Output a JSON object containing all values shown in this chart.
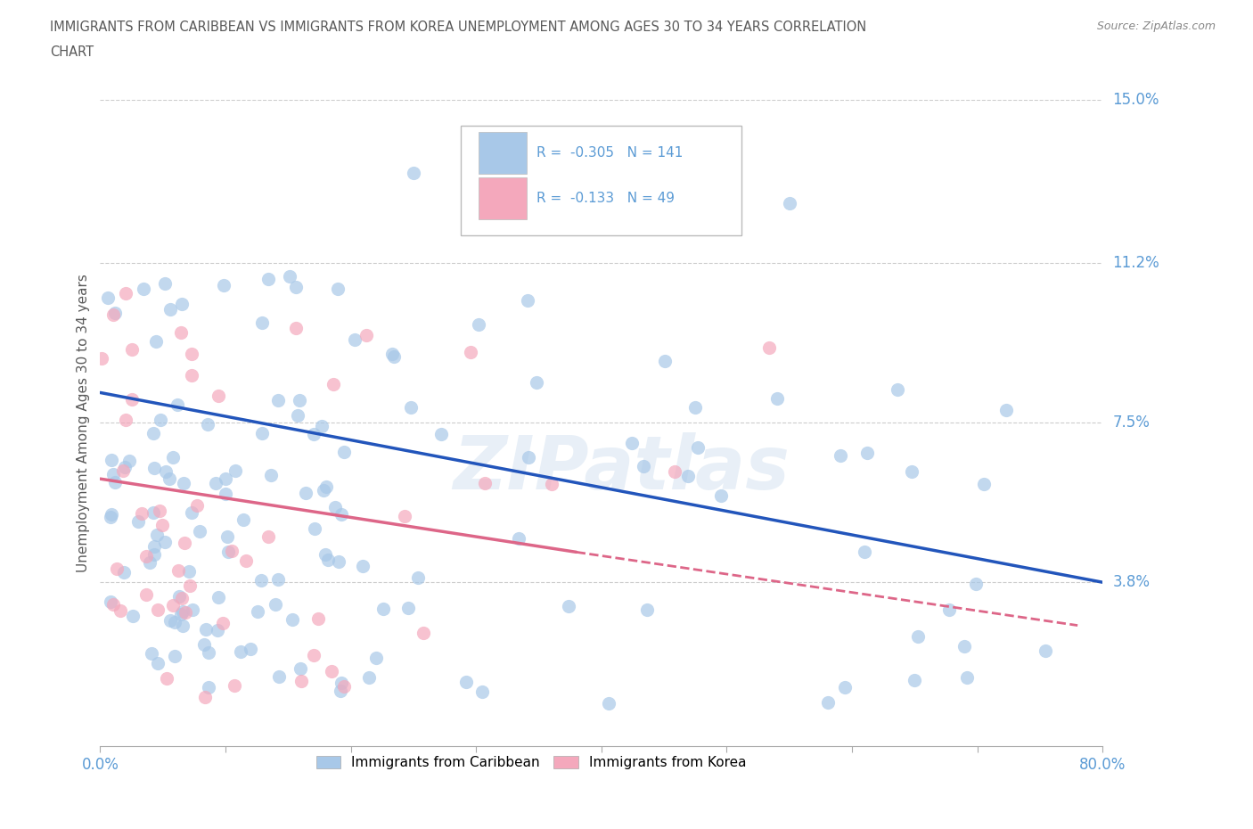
{
  "title_line1": "IMMIGRANTS FROM CARIBBEAN VS IMMIGRANTS FROM KOREA UNEMPLOYMENT AMONG AGES 30 TO 34 YEARS CORRELATION",
  "title_line2": "CHART",
  "source": "Source: ZipAtlas.com",
  "ylabel": "Unemployment Among Ages 30 to 34 years",
  "xlim": [
    0.0,
    0.8
  ],
  "ylim": [
    0.0,
    0.15
  ],
  "ytick_vals": [
    0.038,
    0.075,
    0.112,
    0.15
  ],
  "ytick_labels": [
    "3.8%",
    "7.5%",
    "11.2%",
    "15.0%"
  ],
  "xtick_positions": [
    0.0,
    0.1,
    0.2,
    0.3,
    0.4,
    0.5,
    0.6,
    0.7,
    0.8
  ],
  "xtick_labels": [
    "0.0%",
    "",
    "",
    "",
    "",
    "",
    "",
    "",
    "80.0%"
  ],
  "caribbean_color": "#A8C8E8",
  "korea_color": "#F4A8BC",
  "caribbean_line_color": "#2255BB",
  "korea_line_color_solid": "#DD6688",
  "korea_line_color_dash": "#DD6688",
  "caribbean_R": -0.305,
  "caribbean_N": 141,
  "korea_R": -0.133,
  "korea_N": 49,
  "watermark": "ZIPatlas",
  "grid_color": "#CCCCCC",
  "axis_label_color": "#5B9BD5",
  "title_color": "#595959",
  "legend_text_color": "#5B9BD5",
  "legend_R_color": "#333333",
  "carib_line_x0": 0.0,
  "carib_line_y0": 0.082,
  "carib_line_x1": 0.8,
  "carib_line_y1": 0.038,
  "korea_line_solid_x0": 0.0,
  "korea_line_solid_y0": 0.062,
  "korea_line_solid_x1": 0.38,
  "korea_line_solid_y1": 0.045,
  "korea_line_dash_x0": 0.38,
  "korea_line_dash_y0": 0.045,
  "korea_line_dash_x1": 0.78,
  "korea_line_dash_y1": 0.028
}
